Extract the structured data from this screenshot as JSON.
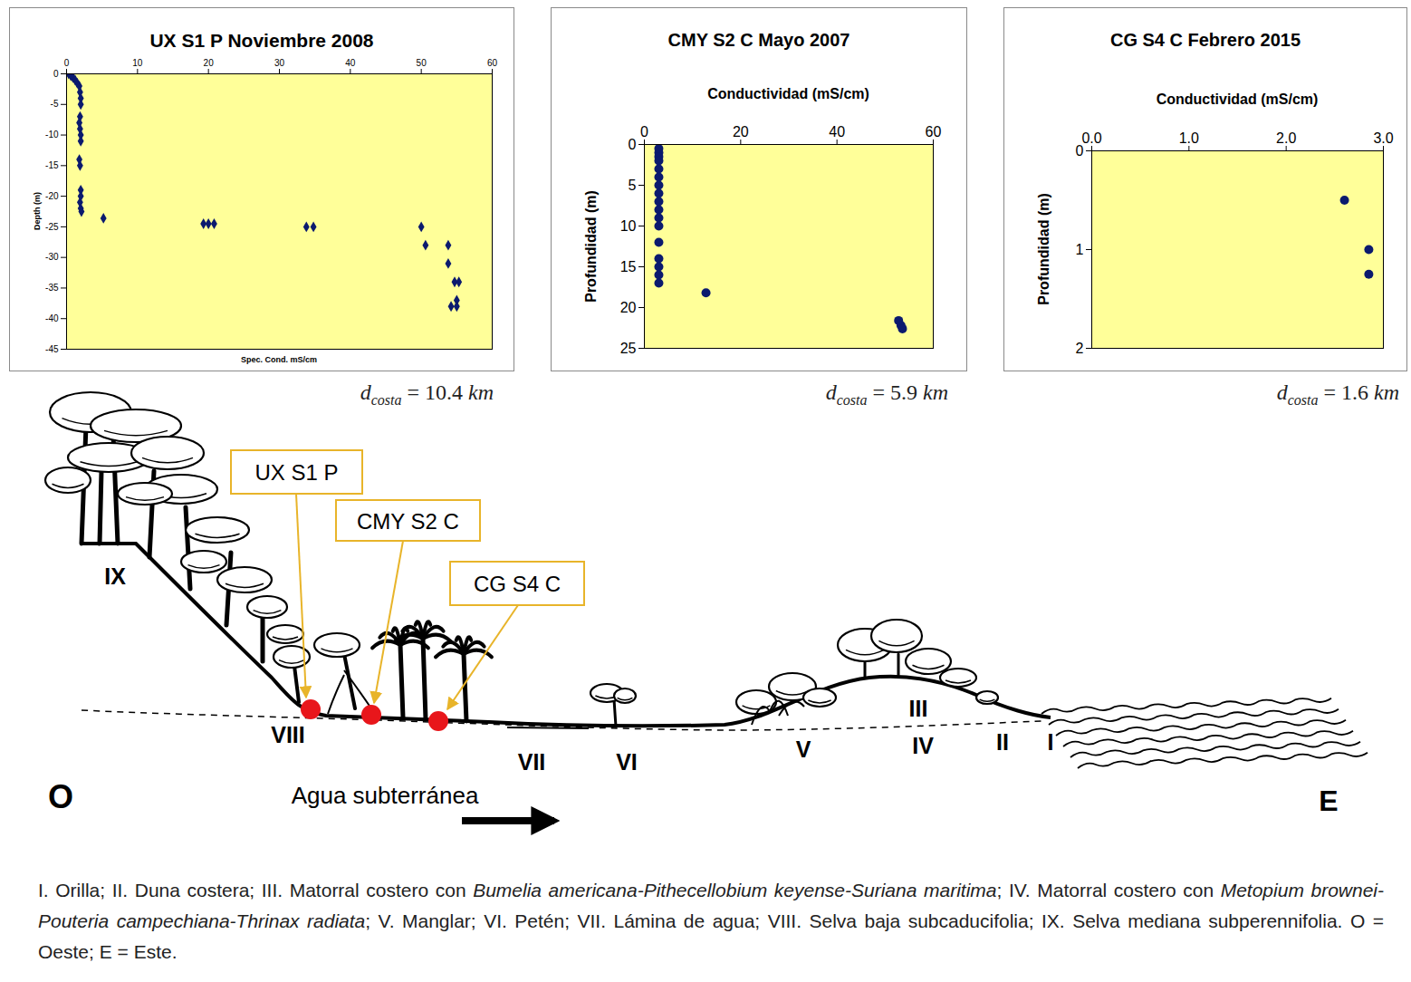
{
  "chart_data": [
    {
      "type": "scatter",
      "title": "UX S1 P Noviembre 2008",
      "x_label": "Spec. Cond. mS/cm",
      "y_label": "Depth (m)",
      "x": [
        0.3,
        0.6,
        0.9,
        1.2,
        1.5,
        1.8,
        1.9,
        2.0,
        2.0,
        1.9,
        1.8,
        1.9,
        2.0,
        2.0,
        1.8,
        1.9,
        2.0,
        2.0,
        1.9,
        2.0,
        2.1,
        5.2,
        19.3,
        20.0,
        20.8,
        33.8,
        34.8,
        50.0,
        50.6,
        53.8,
        53.8,
        54.7,
        55.3,
        55.0,
        54.2,
        55.0
      ],
      "y": [
        0,
        -0.3,
        -0.6,
        -1,
        -1.5,
        -2,
        -3,
        -4,
        -5,
        -7,
        -8,
        -9,
        -10,
        -11,
        -14,
        -15,
        -19,
        -20,
        -21,
        -22,
        -22.5,
        -23.6,
        -24.5,
        -24.5,
        -24.5,
        -25,
        -25,
        -25,
        -28,
        -28,
        -31,
        -34,
        -34,
        -37,
        -38,
        -38
      ],
      "xlim": [
        0,
        60
      ],
      "xticks": [
        0,
        10,
        20,
        30,
        40,
        50,
        60
      ],
      "ylim": [
        -45,
        0
      ],
      "yticks": [
        0,
        -5,
        -10,
        -15,
        -20,
        -25,
        -30,
        -35,
        -40,
        -45
      ],
      "color": "#0b1a6e",
      "marker": "diamond",
      "distance_label": {
        "symbol": "d",
        "subscript": "costa",
        "relation": "=",
        "value": 10.4,
        "unit": "km"
      }
    },
    {
      "type": "scatter",
      "title": "CMY S2 C Mayo 2007",
      "x_label": "Conductividad (mS/cm)",
      "y_label": "Profundidad (m)",
      "x": [
        3,
        3,
        3,
        3,
        3,
        3,
        3,
        3,
        3,
        3,
        3,
        3,
        3,
        3,
        3,
        3,
        3,
        12.8,
        52.8,
        53.3,
        53.6
      ],
      "y": [
        0.5,
        1,
        1.5,
        2,
        3,
        4,
        5,
        6,
        7,
        8,
        9,
        10,
        12,
        14,
        15,
        16,
        17,
        18.2,
        21.6,
        22.2,
        22.6
      ],
      "xlim": [
        0,
        60
      ],
      "xticks": [
        0,
        20,
        40,
        60
      ],
      "ylim": [
        25,
        0
      ],
      "yticks": [
        0,
        5,
        10,
        15,
        20,
        25
      ],
      "color": "#0b1a6e",
      "marker": "circle",
      "distance_label": {
        "symbol": "d",
        "subscript": "costa",
        "relation": "=",
        "value": 5.9,
        "unit": "km"
      }
    },
    {
      "type": "scatter",
      "title": "CG S4 C Febrero 2015",
      "x_label": "Conductividad (mS/cm)",
      "y_label": "Profundidad (m)",
      "x": [
        2.6,
        2.85,
        2.85
      ],
      "y": [
        0.5,
        1.0,
        1.25
      ],
      "xlim": [
        0,
        3
      ],
      "xticks": [
        {
          "value": 0,
          "label": "0.0"
        },
        {
          "value": 1,
          "label": "1.0"
        },
        {
          "value": 2,
          "label": "2.0"
        },
        {
          "value": 3,
          "label": "3.0"
        }
      ],
      "ylim": [
        2,
        0
      ],
      "yticks": [
        0,
        1,
        2
      ],
      "color": "#0b1a6e",
      "marker": "circle",
      "distance_label": {
        "symbol": "d",
        "subscript": "costa",
        "relation": "=",
        "value": 1.6,
        "unit": "km"
      }
    }
  ],
  "diagram": {
    "sites": [
      {
        "label": "UX S1 P"
      },
      {
        "label": "CMY S2 C"
      },
      {
        "label": "CG S4 C"
      }
    ],
    "zones": [
      "IX",
      "VIII",
      "VII",
      "VI",
      "V",
      "III",
      "IV",
      "II",
      "I"
    ],
    "west": "O",
    "east": "E",
    "flow_label": "Agua subterránea",
    "caption": [
      {
        "text": "I. Orilla; II. Duna costera; III. Matorral costero con ",
        "italic": false
      },
      {
        "text": "Bumelia americana-Pithecellobium keyense-Suriana maritima",
        "italic": true
      },
      {
        "text": "; IV. Matorral costero con ",
        "italic": false
      },
      {
        "text": "Metopium brownei-Pouteria campechiana-Thrinax radiata",
        "italic": true
      },
      {
        "text": "; V. Manglar; VI. Petén; VII. Lámina de agua; VIII. Selva baja subcaducifolia; IX. Selva mediana subperennifolia. O = Oeste; E = Este.",
        "italic": false
      }
    ]
  }
}
